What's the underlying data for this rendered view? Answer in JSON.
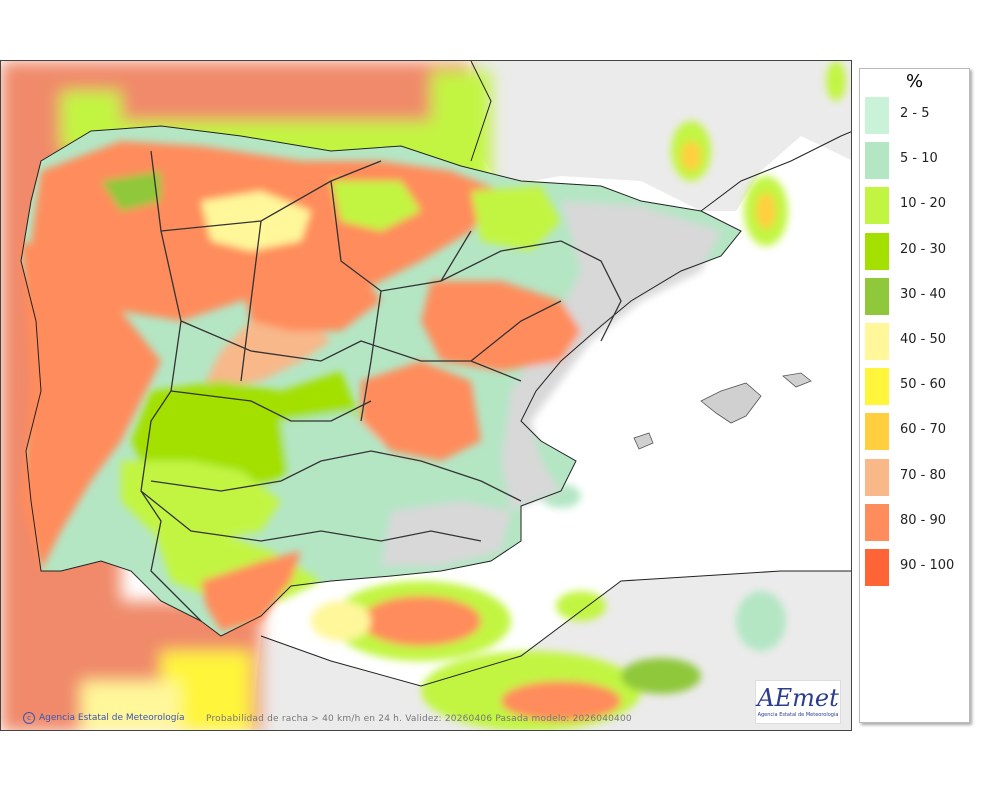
{
  "map": {
    "credit": "Agencia Estatal de Meteorología",
    "caption": "Probabilidad de racha > 40 km/h en 24 h. Validez: 20260406 Pasada modelo: 2026040400",
    "logo_text": "AEmet",
    "logo_subtitle": "Agencia Estatal de Meteorología"
  },
  "legend": {
    "unit": "%",
    "items": [
      {
        "label": "2 - 5",
        "color": "#c9f2d8"
      },
      {
        "label": "5 - 10",
        "color": "#b4e6c4"
      },
      {
        "label": "10 - 20",
        "color": "#c2f542"
      },
      {
        "label": "20 - 30",
        "color": "#a3e000"
      },
      {
        "label": "30 - 40",
        "color": "#8fc83a"
      },
      {
        "label": "40 - 50",
        "color": "#fff79a"
      },
      {
        "label": "50 - 60",
        "color": "#fff53a"
      },
      {
        "label": "60 - 70",
        "color": "#ffcf3f"
      },
      {
        "label": "70 - 80",
        "color": "#f8b88a"
      },
      {
        "label": "80 - 90",
        "color": "#ff8c5c"
      },
      {
        "label": "90 - 100",
        "color": "#ff6436"
      }
    ]
  },
  "colors": {
    "sea_high": "#f08a6a",
    "land_gray": "#d8d8d8",
    "ocean_plain": "#ffffff",
    "foreign_land": "#ebebeb"
  }
}
